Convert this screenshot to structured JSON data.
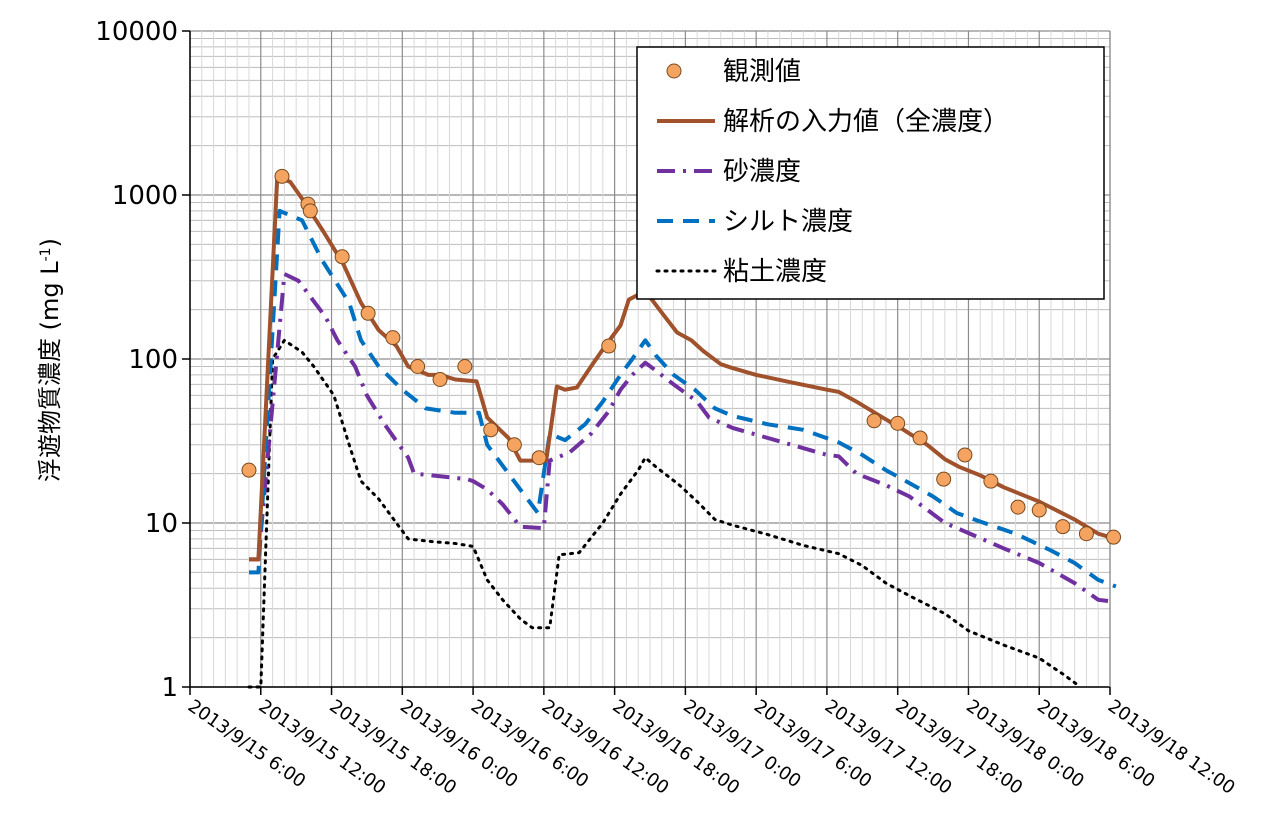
{
  "chart_data": {
    "type": "line",
    "title": "",
    "xlabel": "",
    "ylabel": "浮遊物質濃度 (mg L⁻¹)",
    "ylabel_main": "浮遊物質濃度 (mg L",
    "ylabel_sup": "-1",
    "ylabel_close": ")",
    "y_scale": "log",
    "ylim": [
      1,
      10000
    ],
    "y_ticks": [
      "1",
      "10",
      "100",
      "1000",
      "10000"
    ],
    "x_ticks": [
      "2013/9/15 6:00",
      "2013/9/15 12:00",
      "2013/9/15 18:00",
      "2013/9/16 0:00",
      "2013/9/16 6:00",
      "2013/9/16 12:00",
      "2013/9/16 18:00",
      "2013/9/17 0:00",
      "2013/9/17 6:00",
      "2013/9/17 12:00",
      "2013/9/17 18:00",
      "2013/9/18 0:00",
      "2013/9/18 6:00",
      "2013/9/18 12:00"
    ],
    "x_unit_note": "x values are hours after 2013/9/15 0:00",
    "xlim": [
      6,
      84
    ],
    "grid": true,
    "legend_position": "top-right",
    "series": [
      {
        "name": "観測値",
        "style": "markers",
        "color": "#F4A460",
        "points": [
          [
            11,
            21
          ],
          [
            13.8,
            1300
          ],
          [
            16,
            880
          ],
          [
            16.2,
            800
          ],
          [
            18.9,
            420
          ],
          [
            21.1,
            190
          ],
          [
            23.2,
            135
          ],
          [
            25.3,
            90
          ],
          [
            27.2,
            75
          ],
          [
            29.3,
            90
          ],
          [
            31.5,
            37
          ],
          [
            33.5,
            30
          ],
          [
            35.6,
            25
          ],
          [
            41.5,
            120
          ],
          [
            64,
            42
          ],
          [
            66,
            40.5
          ],
          [
            67.9,
            33
          ],
          [
            69.9,
            18.5
          ],
          [
            71.7,
            26
          ],
          [
            73.9,
            18
          ],
          [
            76.2,
            12.5
          ],
          [
            78.0,
            12
          ],
          [
            80.0,
            9.5
          ],
          [
            82.0,
            8.6
          ],
          [
            84.3,
            8.2
          ]
        ]
      },
      {
        "name": "解析の入力値（全濃度）",
        "style": "solid",
        "color": "#A0522D",
        "points": [
          [
            11,
            6
          ],
          [
            11.8,
            6
          ],
          [
            13.4,
            1300
          ],
          [
            14.5,
            1200
          ],
          [
            15.5,
            950
          ],
          [
            17.3,
            600
          ],
          [
            19,
            380
          ],
          [
            20.5,
            220
          ],
          [
            22,
            150
          ],
          [
            23.5,
            120
          ],
          [
            24.5,
            90
          ],
          [
            26.2,
            80
          ],
          [
            27.2,
            80
          ],
          [
            28.5,
            75
          ],
          [
            30.3,
            73
          ],
          [
            31.2,
            44
          ],
          [
            33,
            33
          ],
          [
            34,
            24
          ],
          [
            35.1,
            24
          ],
          [
            36.2,
            24
          ],
          [
            37.1,
            68
          ],
          [
            37.8,
            65
          ],
          [
            38.8,
            67
          ],
          [
            40,
            90
          ],
          [
            41.2,
            120
          ],
          [
            42.5,
            160
          ],
          [
            43.2,
            230
          ],
          [
            44.6,
            260
          ],
          [
            45.8,
            200
          ],
          [
            47.3,
            145
          ],
          [
            48.5,
            130
          ],
          [
            49.5,
            112
          ],
          [
            51,
            93
          ],
          [
            52,
            88
          ],
          [
            54,
            80
          ],
          [
            57,
            72
          ],
          [
            60,
            65
          ],
          [
            61,
            63
          ],
          [
            62.5,
            55
          ],
          [
            64.5,
            45
          ],
          [
            66.5,
            37
          ],
          [
            68.5,
            30
          ],
          [
            70,
            24.5
          ],
          [
            71.2,
            22
          ],
          [
            73,
            19.5
          ],
          [
            75,
            16.5
          ],
          [
            78,
            13.5
          ],
          [
            81,
            10.5
          ],
          [
            83,
            8.6
          ],
          [
            84.5,
            8
          ]
        ]
      },
      {
        "name": "砂濃度",
        "style": "dashdot",
        "color": "#7030A0",
        "points": [
          [
            11,
            6
          ],
          [
            11.8,
            6
          ],
          [
            14,
            330
          ],
          [
            15.2,
            300
          ],
          [
            17.5,
            180
          ],
          [
            18.5,
            130
          ],
          [
            20,
            90
          ],
          [
            21,
            60
          ],
          [
            22.5,
            40
          ],
          [
            24.5,
            25
          ],
          [
            25,
            20
          ],
          [
            26.5,
            19.5
          ],
          [
            28,
            19
          ],
          [
            29.5,
            18.5
          ],
          [
            30,
            18
          ],
          [
            31.2,
            16
          ],
          [
            32.5,
            13
          ],
          [
            34,
            9.5
          ],
          [
            36,
            9.3
          ],
          [
            36.5,
            24
          ],
          [
            38.2,
            27
          ],
          [
            40,
            35
          ],
          [
            41.5,
            48
          ],
          [
            42.5,
            65
          ],
          [
            43.5,
            80
          ],
          [
            44.6,
            95
          ],
          [
            45.5,
            85
          ],
          [
            47,
            70
          ],
          [
            49,
            55
          ],
          [
            50,
            44
          ],
          [
            52,
            38
          ],
          [
            55,
            33
          ],
          [
            57,
            30
          ],
          [
            60,
            26
          ],
          [
            61,
            25.5
          ],
          [
            62.5,
            20
          ],
          [
            65,
            17
          ],
          [
            67,
            14.5
          ],
          [
            70,
            10
          ],
          [
            71.5,
            9
          ],
          [
            75,
            7
          ],
          [
            78,
            5.7
          ],
          [
            81,
            4.3
          ],
          [
            83,
            3.4
          ],
          [
            84.5,
            3.3
          ]
        ]
      },
      {
        "name": "シルト濃度",
        "style": "dashed",
        "color": "#0070C0",
        "points": [
          [
            11,
            5
          ],
          [
            11.8,
            5
          ],
          [
            13.6,
            800
          ],
          [
            15.5,
            700
          ],
          [
            17.2,
            400
          ],
          [
            19.5,
            220
          ],
          [
            20.5,
            130
          ],
          [
            22,
            90
          ],
          [
            24,
            65
          ],
          [
            26,
            50
          ],
          [
            28.5,
            47
          ],
          [
            30.5,
            47
          ],
          [
            31.2,
            30
          ],
          [
            33,
            20
          ],
          [
            34,
            16
          ],
          [
            35.5,
            11.5
          ],
          [
            36.5,
            35
          ],
          [
            37.8,
            32
          ],
          [
            39.5,
            40
          ],
          [
            41,
            55
          ],
          [
            42.5,
            80
          ],
          [
            43.5,
            100
          ],
          [
            44.6,
            130
          ],
          [
            45.5,
            105
          ],
          [
            47,
            80
          ],
          [
            48.8,
            65
          ],
          [
            50.5,
            50
          ],
          [
            52,
            45
          ],
          [
            55,
            40
          ],
          [
            58,
            37
          ],
          [
            61,
            31
          ],
          [
            63,
            26
          ],
          [
            65,
            21
          ],
          [
            67,
            17.5
          ],
          [
            69,
            14.5
          ],
          [
            71,
            11.5
          ],
          [
            73,
            10.2
          ],
          [
            76,
            8.6
          ],
          [
            79,
            6.8
          ],
          [
            81,
            5.7
          ],
          [
            83,
            4.5
          ],
          [
            84.5,
            4.1
          ]
        ]
      },
      {
        "name": "粘土濃度",
        "style": "dotted",
        "color": "#000000",
        "points": [
          [
            11,
            1
          ],
          [
            12,
            1
          ],
          [
            13,
            100
          ],
          [
            14,
            130
          ],
          [
            15.5,
            110
          ],
          [
            16.5,
            90
          ],
          [
            18.2,
            60
          ],
          [
            19.5,
            30
          ],
          [
            20.5,
            18
          ],
          [
            22,
            14
          ],
          [
            23.5,
            10
          ],
          [
            24.5,
            8
          ],
          [
            26.5,
            7.7
          ],
          [
            28.5,
            7.5
          ],
          [
            30,
            7.2
          ],
          [
            31.2,
            4.5
          ],
          [
            32.5,
            3.4
          ],
          [
            34,
            2.6
          ],
          [
            35,
            2.3
          ],
          [
            36.5,
            2.3
          ],
          [
            37.3,
            6.4
          ],
          [
            38.2,
            6.5
          ],
          [
            39,
            6.6
          ],
          [
            41,
            10
          ],
          [
            42.5,
            15
          ],
          [
            44,
            21
          ],
          [
            44.6,
            25
          ],
          [
            45.5,
            22
          ],
          [
            47.5,
            17
          ],
          [
            49,
            13.5
          ],
          [
            50.5,
            10.5
          ],
          [
            52,
            9.7
          ],
          [
            55,
            8.5
          ],
          [
            58,
            7.3
          ],
          [
            61,
            6.5
          ],
          [
            63,
            5.5
          ],
          [
            65,
            4.3
          ],
          [
            67,
            3.6
          ],
          [
            70,
            2.8
          ],
          [
            72,
            2.2
          ],
          [
            75,
            1.8
          ],
          [
            78,
            1.5
          ],
          [
            80,
            1.2
          ],
          [
            81.5,
            1
          ]
        ]
      }
    ]
  }
}
